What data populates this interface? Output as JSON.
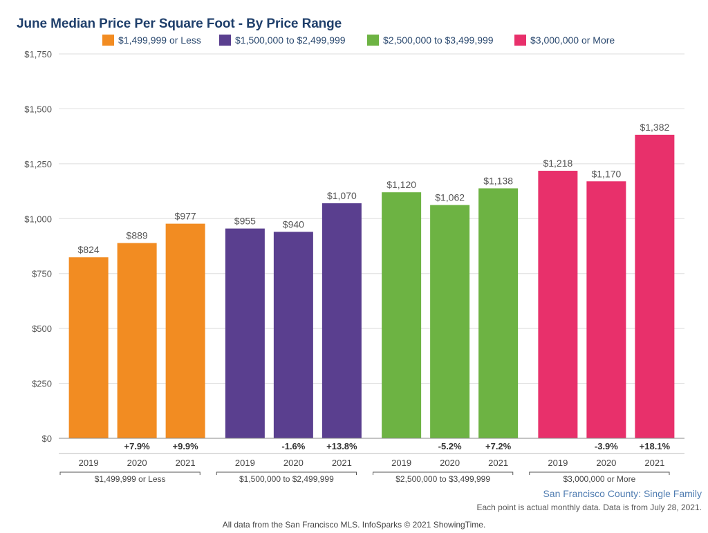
{
  "chart_data": {
    "type": "bar",
    "title": "June Median Price Per Square Foot - By Price Range",
    "ylim": [
      0,
      1750
    ],
    "yticks": [
      "$0",
      "$250",
      "$500",
      "$750",
      "$1,000",
      "$1,250",
      "$1,500",
      "$1,750"
    ],
    "ytick_values": [
      0,
      250,
      500,
      750,
      1000,
      1250,
      1500,
      1750
    ],
    "grid": true,
    "legend_position": "top",
    "groups": [
      {
        "name": "$1,499,999 or Less",
        "color": "#f28c22",
        "years": [
          "2019",
          "2020",
          "2021"
        ],
        "values": [
          824,
          889,
          977
        ],
        "value_labels": [
          "$824",
          "$889",
          "$977"
        ],
        "changes": [
          "",
          "+7.9%",
          "+9.9%"
        ]
      },
      {
        "name": "$1,500,000 to $2,499,999",
        "color": "#5a3f8f",
        "years": [
          "2019",
          "2020",
          "2021"
        ],
        "values": [
          955,
          940,
          1070
        ],
        "value_labels": [
          "$955",
          "$940",
          "$1,070"
        ],
        "changes": [
          "",
          "-1.6%",
          "+13.8%"
        ]
      },
      {
        "name": "$2,500,000 to $3,499,999",
        "color": "#6db343",
        "years": [
          "2019",
          "2020",
          "2021"
        ],
        "values": [
          1120,
          1062,
          1138
        ],
        "value_labels": [
          "$1,120",
          "$1,062",
          "$1,138"
        ],
        "changes": [
          "",
          "-5.2%",
          "+7.2%"
        ]
      },
      {
        "name": "$3,000,000 or More",
        "color": "#e8306b",
        "years": [
          "2019",
          "2020",
          "2021"
        ],
        "values": [
          1218,
          1170,
          1382
        ],
        "value_labels": [
          "$1,218",
          "$1,170",
          "$1,382"
        ],
        "changes": [
          "",
          "-3.9%",
          "+18.1%"
        ]
      }
    ]
  },
  "legend": [
    {
      "label": "$1,499,999 or Less",
      "color": "#f28c22"
    },
    {
      "label": "$1,500,000 to $2,499,999",
      "color": "#5a3f8f"
    },
    {
      "label": "$2,500,000 to $3,499,999",
      "color": "#6db343"
    },
    {
      "label": "$3,000,000 or More",
      "color": "#e8306b"
    }
  ],
  "footer": {
    "county": "San Francisco County: Single Family",
    "note": "Each point is actual monthly data. Data is from July 28, 2021.",
    "source": "All data from the San Francisco MLS. InfoSparks © 2021 ShowingTime."
  }
}
